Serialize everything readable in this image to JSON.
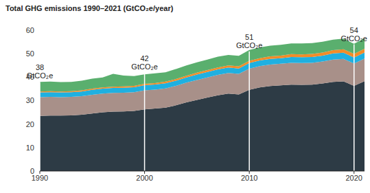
{
  "chart_data": {
    "type": "area",
    "title": "Total GHG emissions 1990–2021 (GtCO₂e/year)",
    "stacked": true,
    "grid": false,
    "x": [
      1990,
      1991,
      1992,
      1993,
      1994,
      1995,
      1996,
      1997,
      1998,
      1999,
      2000,
      2001,
      2002,
      2003,
      2004,
      2005,
      2006,
      2007,
      2008,
      2009,
      2010,
      2011,
      2012,
      2013,
      2014,
      2015,
      2016,
      2017,
      2018,
      2019,
      2020,
      2021
    ],
    "xlim": [
      1990,
      2021
    ],
    "xticks": [
      1990,
      2000,
      2010,
      2020
    ],
    "ylim": [
      0,
      60
    ],
    "yticks": [
      0,
      10,
      20,
      30,
      40,
      50,
      60
    ],
    "series": [
      {
        "color": "#2d3b45",
        "values": [
          23.5,
          23.6,
          23.6,
          23.7,
          24.0,
          24.5,
          25.0,
          25.3,
          25.4,
          25.6,
          26.3,
          26.6,
          27.0,
          28.0,
          29.3,
          30.3,
          31.3,
          32.3,
          33.0,
          32.6,
          34.6,
          35.6,
          36.2,
          36.5,
          36.8,
          36.7,
          36.8,
          37.3,
          38.0,
          38.2,
          36.3,
          38.3
        ]
      },
      {
        "color": "#a89089",
        "values": [
          8.0,
          8.0,
          7.9,
          7.9,
          7.9,
          8.0,
          8.0,
          8.0,
          8.0,
          8.0,
          8.1,
          8.1,
          8.2,
          8.3,
          8.4,
          8.5,
          8.6,
          8.7,
          8.8,
          8.8,
          9.0,
          9.1,
          9.2,
          9.2,
          9.3,
          9.3,
          9.3,
          9.4,
          9.5,
          9.6,
          9.5,
          9.6
        ]
      },
      {
        "color": "#1fb0e0",
        "values": [
          2.0,
          2.0,
          2.0,
          2.0,
          2.0,
          2.1,
          2.1,
          2.1,
          2.1,
          2.1,
          2.2,
          2.2,
          2.2,
          2.2,
          2.2,
          2.3,
          2.3,
          2.3,
          2.3,
          2.3,
          2.4,
          2.4,
          2.4,
          2.4,
          2.5,
          2.5,
          2.5,
          2.5,
          2.6,
          2.6,
          2.6,
          2.6
        ]
      },
      {
        "color": "#f28c28",
        "values": [
          0.4,
          0.4,
          0.4,
          0.4,
          0.5,
          0.5,
          0.5,
          0.5,
          0.6,
          0.6,
          0.6,
          0.6,
          0.7,
          0.7,
          0.7,
          0.8,
          0.8,
          0.8,
          0.9,
          0.9,
          1.0,
          1.0,
          1.1,
          1.1,
          1.2,
          1.2,
          1.3,
          1.3,
          1.4,
          1.5,
          1.5,
          1.6
        ]
      },
      {
        "color": "#5aaf6e",
        "values": [
          4.1,
          4.1,
          4.0,
          4.0,
          4.1,
          4.3,
          4.3,
          5.5,
          4.6,
          4.2,
          4.0,
          4.1,
          4.0,
          4.3,
          4.4,
          4.4,
          4.5,
          4.6,
          4.5,
          4.5,
          4.6,
          4.6,
          4.5,
          4.6,
          4.6,
          4.7,
          4.6,
          4.6,
          4.5,
          4.5,
          4.3,
          4.5
        ]
      }
    ],
    "annotations": [
      {
        "x": 1990,
        "value": 38,
        "unit": "GtCO₂e"
      },
      {
        "x": 2000,
        "value": 42,
        "unit": "GtCO₂e"
      },
      {
        "x": 2010,
        "value": 51,
        "unit": "GtCO₂e"
      },
      {
        "x": 2020,
        "value": 54,
        "unit": "GtCO₂e"
      }
    ]
  }
}
